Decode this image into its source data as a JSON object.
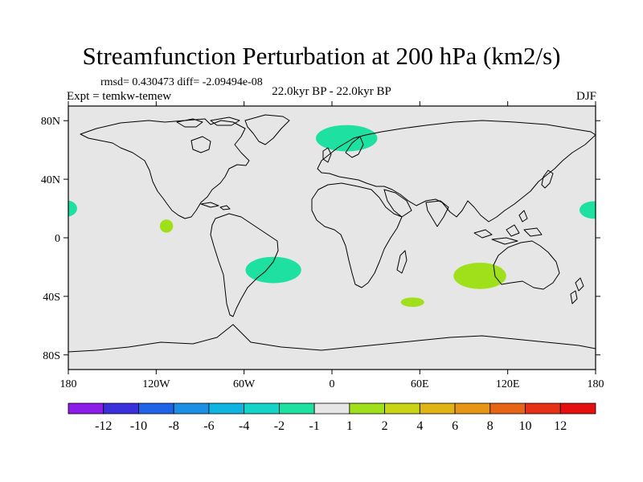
{
  "chart_data": {
    "type": "heatmap",
    "title": "Streamfunction Perturbation at 200 hPa (km2/s)",
    "stats_text": "rmsd= 0.430473 diff= -2.09494e-08",
    "experiment": "Expt = temkw-temew",
    "period": "22.0kyr BP - 22.0kyr BP",
    "season": "DJF",
    "projection": "cylindrical equidistant",
    "xlim": [
      -180,
      180
    ],
    "ylim": [
      -90,
      90
    ],
    "x_ticks": [
      {
        "value": -180,
        "label": "180"
      },
      {
        "value": -120,
        "label": "120W"
      },
      {
        "value": -60,
        "label": "60W"
      },
      {
        "value": 0,
        "label": "0"
      },
      {
        "value": 60,
        "label": "60E"
      },
      {
        "value": 120,
        "label": "120E"
      },
      {
        "value": 180,
        "label": "180"
      }
    ],
    "y_ticks": [
      {
        "value": 80,
        "label": "80N"
      },
      {
        "value": 40,
        "label": "40N"
      },
      {
        "value": 0,
        "label": "0"
      },
      {
        "value": -40,
        "label": "40S"
      },
      {
        "value": -80,
        "label": "80S"
      }
    ],
    "background_color": "#e6e6e6",
    "levels": [
      -12,
      -10,
      -8,
      -6,
      -4,
      -2,
      -1,
      1,
      2,
      4,
      6,
      8,
      10,
      12
    ],
    "level_labels": [
      "-12",
      "-10",
      "-8",
      "-6",
      "-4",
      "-2",
      "-1",
      "1",
      "2",
      "4",
      "6",
      "8",
      "10",
      "12"
    ],
    "colors": [
      "#8c1ce8",
      "#3a2fdc",
      "#1f63e6",
      "#1a8fe6",
      "#0fb4e0",
      "#14d4c8",
      "#1ee0a0",
      "#e6e6e6",
      "#9fe01a",
      "#c8d414",
      "#e0b414",
      "#e69614",
      "#e66414",
      "#e63214",
      "#e60f0f"
    ],
    "anomalies": [
      {
        "name": "north-atlantic-high-lat",
        "lon_center": 10,
        "lat_center": 68,
        "lon_radius": 21,
        "lat_radius": 9,
        "color": "#1ee0a0",
        "range": "-2 to -1"
      },
      {
        "name": "south-atlantic",
        "lon_center": -40,
        "lat_center": -22,
        "lon_radius": 19,
        "lat_radius": 9,
        "color": "#1ee0a0",
        "range": "-2 to -1"
      },
      {
        "name": "west-pacific-edge",
        "lon_center": -181,
        "lat_center": 20,
        "lon_radius": 7,
        "lat_radius": 5.5,
        "color": "#1ee0a0",
        "range": "-2 to -1"
      },
      {
        "name": "east-pacific-edge",
        "lon_center": 179,
        "lat_center": 19,
        "lon_radius": 10,
        "lat_radius": 6,
        "color": "#1ee0a0",
        "range": "-2 to -1"
      },
      {
        "name": "east-pacific-tropics",
        "lon_center": -113,
        "lat_center": 8,
        "lon_radius": 4.5,
        "lat_radius": 4.5,
        "color": "#9fe01a",
        "range": "1 to 2"
      },
      {
        "name": "south-indian-ocean",
        "lon_center": 101,
        "lat_center": -26,
        "lon_radius": 18,
        "lat_radius": 9,
        "color": "#9fe01a",
        "range": "1 to 2"
      },
      {
        "name": "southwest-indian-ocean",
        "lon_center": 55,
        "lat_center": -44,
        "lon_radius": 8,
        "lat_radius": 3.2,
        "color": "#9fe01a",
        "range": "1 to 2"
      }
    ],
    "coastline_color": "#000000"
  }
}
